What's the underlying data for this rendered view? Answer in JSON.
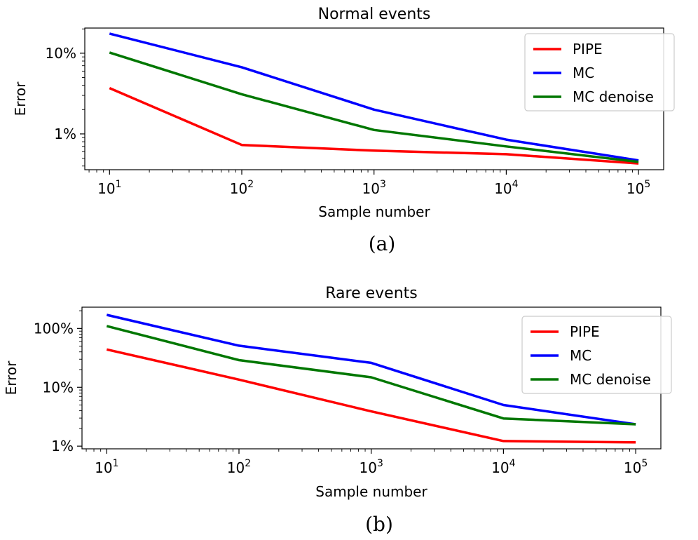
{
  "chart_data": [
    {
      "type": "line",
      "title": "Normal events",
      "xlabel": "Sample number",
      "ylabel": "Error",
      "caption": "(a)",
      "x": [
        10,
        100,
        1000,
        10000,
        100000
      ],
      "x_scale": "log",
      "y_scale": "log",
      "xlim": [
        6.5,
        155000
      ],
      "ylim": [
        0.36,
        20.5
      ],
      "x_ticks": [
        {
          "value": 10,
          "base": "10",
          "exp": "1"
        },
        {
          "value": 100,
          "base": "10",
          "exp": "2"
        },
        {
          "value": 1000,
          "base": "10",
          "exp": "3"
        },
        {
          "value": 10000,
          "base": "10",
          "exp": "4"
        },
        {
          "value": 100000,
          "base": "10",
          "exp": "5"
        }
      ],
      "y_ticks": [
        {
          "value": 1,
          "label": "1%"
        },
        {
          "value": 10,
          "label": "10%"
        }
      ],
      "legend_position": "top-right",
      "series": [
        {
          "name": "PIPE",
          "color": "#ff0000",
          "values": [
            3.7,
            0.73,
            0.62,
            0.56,
            0.43
          ]
        },
        {
          "name": "MC",
          "color": "#0000ff",
          "values": [
            17.5,
            6.7,
            2.0,
            0.85,
            0.47
          ]
        },
        {
          "name": "MC denoise",
          "color": "#007700",
          "values": [
            10.2,
            3.1,
            1.12,
            0.7,
            0.45
          ]
        }
      ]
    },
    {
      "type": "line",
      "title": "Rare events",
      "xlabel": "Sample number",
      "ylabel": "Error",
      "caption": "(b)",
      "x": [
        10,
        100,
        1000,
        10000,
        100000
      ],
      "x_scale": "log",
      "y_scale": "log",
      "xlim": [
        6.5,
        155000
      ],
      "ylim": [
        0.9,
        230
      ],
      "x_ticks": [
        {
          "value": 10,
          "base": "10",
          "exp": "1"
        },
        {
          "value": 100,
          "base": "10",
          "exp": "2"
        },
        {
          "value": 1000,
          "base": "10",
          "exp": "3"
        },
        {
          "value": 10000,
          "base": "10",
          "exp": "4"
        },
        {
          "value": 100000,
          "base": "10",
          "exp": "5"
        }
      ],
      "y_ticks": [
        {
          "value": 1,
          "label": "1%"
        },
        {
          "value": 10,
          "label": "10%"
        },
        {
          "value": 100,
          "label": "100%"
        }
      ],
      "legend_position": "top-right",
      "series": [
        {
          "name": "PIPE",
          "color": "#ff0000",
          "values": [
            44,
            13.5,
            3.9,
            1.22,
            1.16
          ]
        },
        {
          "name": "MC",
          "color": "#0000ff",
          "values": [
            170,
            51,
            26,
            5.0,
            2.35
          ]
        },
        {
          "name": "MC denoise",
          "color": "#007700",
          "values": [
            110,
            29,
            14.8,
            2.95,
            2.35
          ]
        }
      ]
    }
  ]
}
